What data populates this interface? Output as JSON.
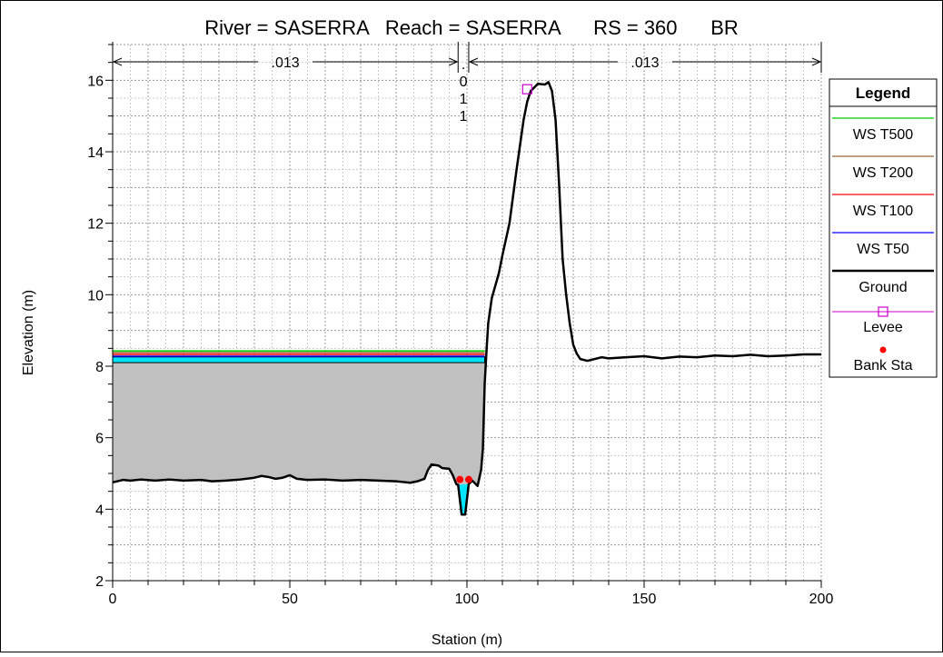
{
  "chart_data": {
    "type": "line",
    "title": "River = SASERRA   Reach = SASERRA      RS = 360      BR",
    "xlabel": "Station (m)",
    "ylabel": "Elevation (m)",
    "xlim": [
      0,
      200
    ],
    "ylim": [
      2,
      17
    ],
    "xticks": [
      0,
      50,
      100,
      150,
      200
    ],
    "yticks": [
      2,
      4,
      6,
      8,
      10,
      12,
      14,
      16
    ],
    "grid": true,
    "legend_position": "right",
    "mannings": [
      {
        "label": ".013",
        "from": 0,
        "to": 97.5
      },
      {
        "label": ".\n0\n1\n1",
        "from": 97.5,
        "to": 100.5
      },
      {
        "label": ".013",
        "from": 100.5,
        "to": 200
      }
    ],
    "legend": {
      "title": "Legend",
      "entries": [
        {
          "name": "WS T500",
          "kind": "line",
          "color": "#00cc00"
        },
        {
          "name": "WS T200",
          "kind": "line",
          "color": "#996633"
        },
        {
          "name": "WS T100",
          "kind": "line",
          "color": "#ff0000"
        },
        {
          "name": "WS T50",
          "kind": "line",
          "color": "#0000ff"
        },
        {
          "name": "Ground",
          "kind": "thickline",
          "color": "#000000"
        },
        {
          "name": "Levee",
          "kind": "marker-square",
          "color": "#cc00cc"
        },
        {
          "name": "Bank Sta",
          "kind": "marker-dot",
          "color": "#ff0000"
        }
      ]
    },
    "water_surfaces": [
      {
        "name": "WS T500",
        "elevation": 8.43,
        "color": "#00cc00"
      },
      {
        "name": "WS T200",
        "elevation": 8.38,
        "color": "#996633"
      },
      {
        "name": "WS T100",
        "elevation": 8.33,
        "color": "#ff0000"
      },
      {
        "name": "WS T50",
        "elevation": 8.28,
        "color": "#0000ff"
      }
    ],
    "water_fill": {
      "top": 8.26,
      "bottom": 8.1,
      "color": "#00e5ff"
    },
    "bridge_fill": {
      "x_end": 105,
      "color": "#c0c0c0"
    },
    "ground": {
      "name": "Ground",
      "color": "#000000",
      "points": [
        [
          0,
          4.75
        ],
        [
          3,
          4.82
        ],
        [
          5,
          4.8
        ],
        [
          8,
          4.83
        ],
        [
          12,
          4.8
        ],
        [
          16,
          4.83
        ],
        [
          20,
          4.8
        ],
        [
          25,
          4.82
        ],
        [
          28,
          4.78
        ],
        [
          32,
          4.8
        ],
        [
          36,
          4.83
        ],
        [
          40,
          4.88
        ],
        [
          42,
          4.93
        ],
        [
          44,
          4.9
        ],
        [
          46,
          4.85
        ],
        [
          48,
          4.88
        ],
        [
          50,
          4.95
        ],
        [
          52,
          4.85
        ],
        [
          55,
          4.82
        ],
        [
          60,
          4.83
        ],
        [
          65,
          4.8
        ],
        [
          70,
          4.82
        ],
        [
          75,
          4.8
        ],
        [
          80,
          4.78
        ],
        [
          82,
          4.76
        ],
        [
          84,
          4.74
        ],
        [
          86,
          4.78
        ],
        [
          88,
          4.85
        ],
        [
          89,
          5.1
        ],
        [
          90,
          5.25
        ],
        [
          92,
          5.22
        ],
        [
          93,
          5.15
        ],
        [
          95,
          5.13
        ],
        [
          96,
          4.95
        ],
        [
          97,
          4.7
        ],
        [
          97.5,
          4.68
        ],
        [
          98.5,
          3.85
        ],
        [
          99.5,
          3.85
        ],
        [
          100.5,
          4.7
        ],
        [
          101.5,
          4.8
        ],
        [
          103,
          4.65
        ],
        [
          104,
          5.1
        ],
        [
          104.5,
          5.7
        ],
        [
          105,
          7.5
        ],
        [
          105.5,
          8.4
        ],
        [
          106,
          9.2
        ],
        [
          107,
          9.9
        ],
        [
          109,
          10.6
        ],
        [
          110,
          11.1
        ],
        [
          112,
          12.0
        ],
        [
          114,
          13.5
        ],
        [
          116,
          14.9
        ],
        [
          117,
          15.4
        ],
        [
          118,
          15.7
        ],
        [
          119,
          15.8
        ],
        [
          120,
          15.9
        ],
        [
          122,
          15.88
        ],
        [
          123,
          15.95
        ],
        [
          124,
          15.7
        ],
        [
          125,
          14.9
        ],
        [
          126,
          13.1
        ],
        [
          127,
          11.0
        ],
        [
          128,
          10.0
        ],
        [
          129,
          9.2
        ],
        [
          130,
          8.6
        ],
        [
          131,
          8.35
        ],
        [
          132,
          8.2
        ],
        [
          134,
          8.15
        ],
        [
          136,
          8.2
        ],
        [
          138,
          8.25
        ],
        [
          140,
          8.22
        ],
        [
          145,
          8.25
        ],
        [
          150,
          8.28
        ],
        [
          155,
          8.22
        ],
        [
          160,
          8.27
        ],
        [
          165,
          8.25
        ],
        [
          170,
          8.3
        ],
        [
          175,
          8.28
        ],
        [
          180,
          8.32
        ],
        [
          185,
          8.28
        ],
        [
          190,
          8.3
        ],
        [
          195,
          8.33
        ],
        [
          200,
          8.33
        ]
      ]
    },
    "levee": [
      {
        "x": 117,
        "y": 15.75,
        "color": "#cc00cc"
      }
    ],
    "bank_stations": [
      {
        "x": 98,
        "y": 4.83,
        "color": "#ff0000"
      },
      {
        "x": 100.5,
        "y": 4.83,
        "color": "#ff0000"
      }
    ]
  }
}
